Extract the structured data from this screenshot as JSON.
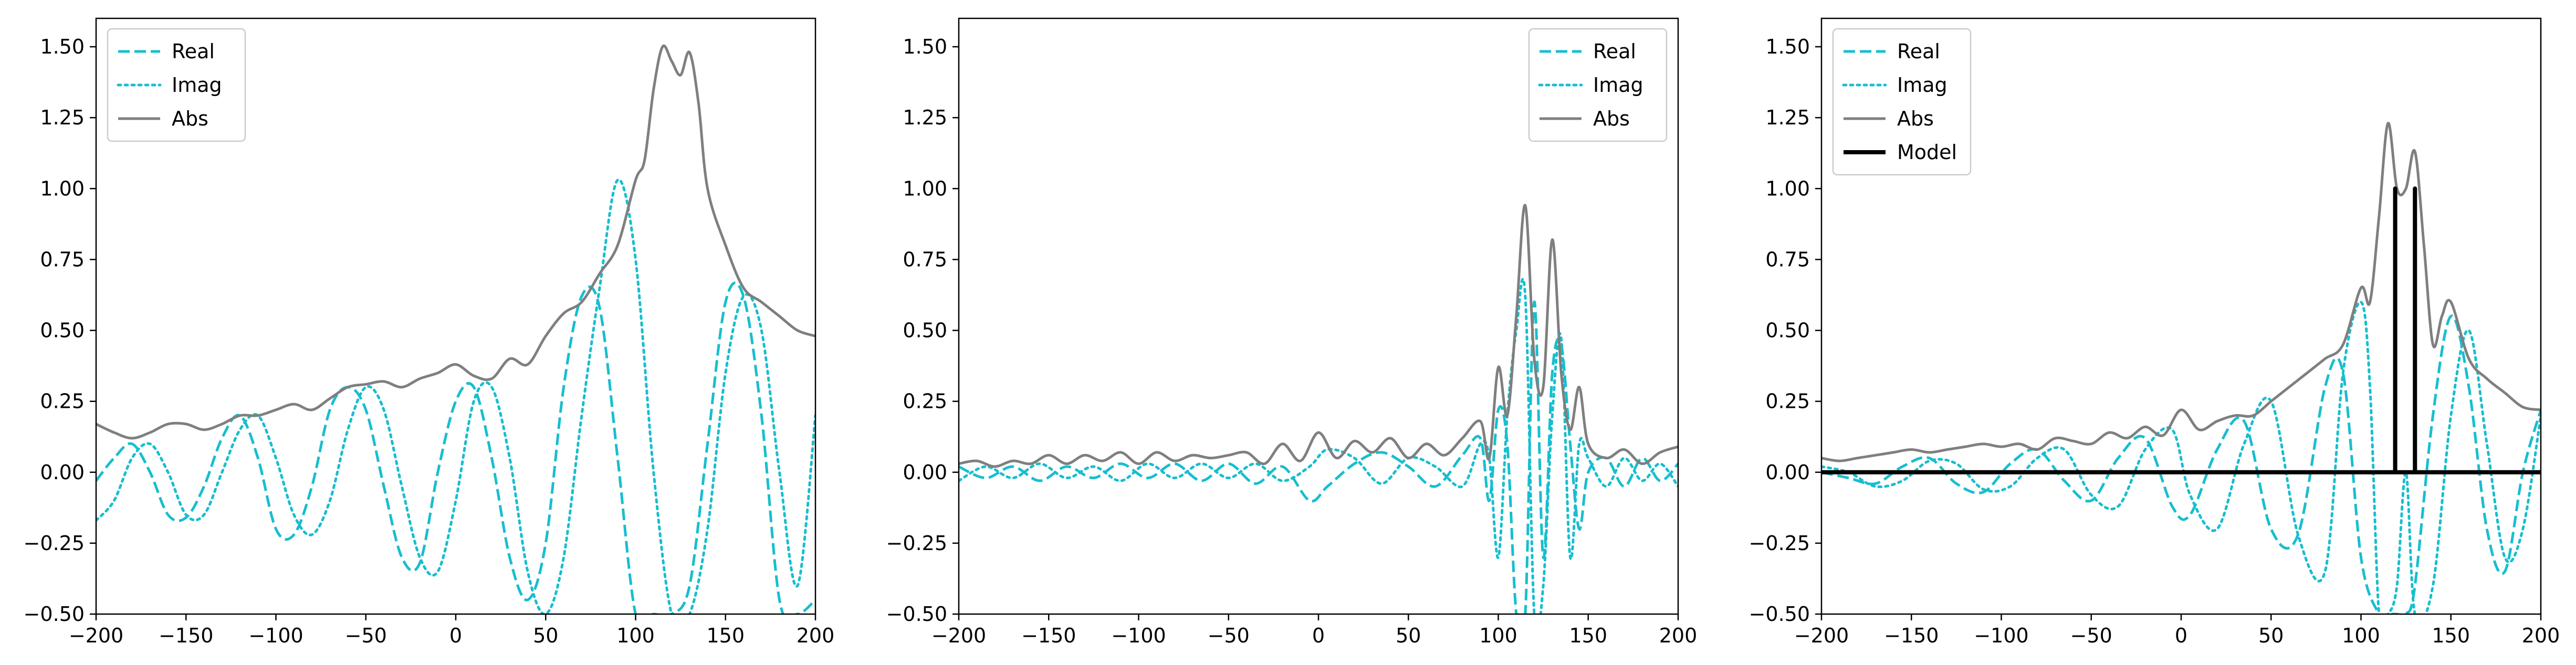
{
  "colors": {
    "real": "#17becf",
    "imag": "#17becf",
    "abs": "#7f7f7f",
    "model": "#000000",
    "axes": "#000000",
    "background": "#ffffff"
  },
  "chart_data": [
    {
      "type": "line",
      "panel": 1,
      "xlim": [
        -200,
        200
      ],
      "ylim": [
        -0.5,
        1.6
      ],
      "xticks": [
        -200,
        -150,
        -100,
        -50,
        0,
        50,
        100,
        150,
        200
      ],
      "yticks": [
        -0.5,
        -0.25,
        0.0,
        0.25,
        0.5,
        0.75,
        1.0,
        1.25,
        1.5
      ],
      "xtick_labels": [
        "−200",
        "−150",
        "−100",
        "−50",
        "0",
        "50",
        "100",
        "150",
        "200"
      ],
      "ytick_labels": [
        "−0.50",
        "−0.25",
        "0.00",
        "0.25",
        "0.50",
        "0.75",
        "1.00",
        "1.25",
        "1.50"
      ],
      "grid": false,
      "legend_position": "top-left",
      "series": [
        {
          "name": "Real",
          "style": "dashed",
          "x": [
            -200,
            -190,
            -180,
            -170,
            -160,
            -150,
            -140,
            -130,
            -120,
            -110,
            -100,
            -90,
            -80,
            -70,
            -60,
            -50,
            -40,
            -30,
            -20,
            -10,
            0,
            10,
            20,
            30,
            40,
            50,
            60,
            70,
            80,
            90,
            100,
            110,
            120,
            130,
            140,
            150,
            160,
            170,
            180,
            190,
            200
          ],
          "y": [
            -0.03,
            0.05,
            0.1,
            0.0,
            -0.15,
            -0.16,
            -0.05,
            0.12,
            0.2,
            0.05,
            -0.2,
            -0.22,
            -0.05,
            0.22,
            0.3,
            0.22,
            -0.05,
            -0.3,
            -0.32,
            0.0,
            0.25,
            0.3,
            0.05,
            -0.3,
            -0.45,
            -0.25,
            0.3,
            0.62,
            0.58,
            0.05,
            -0.5,
            -0.5,
            -0.5,
            -0.4,
            0.1,
            0.6,
            0.62,
            0.2,
            -0.45,
            -0.5,
            -0.45
          ]
        },
        {
          "name": "Imag",
          "style": "dotted",
          "x": [
            -200,
            -190,
            -180,
            -170,
            -160,
            -150,
            -140,
            -130,
            -120,
            -110,
            -100,
            -90,
            -80,
            -70,
            -60,
            -50,
            -40,
            -30,
            -20,
            -10,
            0,
            10,
            20,
            30,
            40,
            50,
            60,
            70,
            80,
            90,
            100,
            110,
            120,
            130,
            140,
            150,
            160,
            170,
            180,
            190,
            200
          ],
          "y": [
            -0.17,
            -0.1,
            0.05,
            0.1,
            0.0,
            -0.15,
            -0.15,
            0.0,
            0.15,
            0.2,
            0.05,
            -0.15,
            -0.22,
            -0.1,
            0.15,
            0.3,
            0.22,
            -0.05,
            -0.3,
            -0.35,
            -0.1,
            0.25,
            0.3,
            0.05,
            -0.35,
            -0.5,
            -0.3,
            0.2,
            0.65,
            1.03,
            0.75,
            0.0,
            -0.5,
            -0.5,
            -0.2,
            0.35,
            0.62,
            0.5,
            0.0,
            -0.4,
            0.2
          ]
        },
        {
          "name": "Abs",
          "style": "solid",
          "x": [
            -200,
            -190,
            -180,
            -170,
            -160,
            -150,
            -140,
            -130,
            -120,
            -110,
            -100,
            -90,
            -80,
            -70,
            -60,
            -50,
            -40,
            -30,
            -20,
            -10,
            0,
            10,
            20,
            30,
            40,
            50,
            60,
            70,
            80,
            90,
            100,
            105,
            110,
            115,
            120,
            125,
            130,
            135,
            140,
            150,
            160,
            170,
            180,
            190,
            200
          ],
          "y": [
            0.17,
            0.14,
            0.12,
            0.14,
            0.17,
            0.17,
            0.15,
            0.17,
            0.2,
            0.2,
            0.22,
            0.24,
            0.22,
            0.26,
            0.3,
            0.31,
            0.32,
            0.3,
            0.33,
            0.35,
            0.38,
            0.34,
            0.33,
            0.4,
            0.38,
            0.48,
            0.56,
            0.6,
            0.7,
            0.8,
            1.03,
            1.1,
            1.35,
            1.5,
            1.45,
            1.4,
            1.48,
            1.3,
            1.0,
            0.8,
            0.65,
            0.6,
            0.55,
            0.5,
            0.48
          ]
        }
      ]
    },
    {
      "type": "line",
      "panel": 2,
      "xlim": [
        -200,
        200
      ],
      "ylim": [
        -0.5,
        1.6
      ],
      "xticks": [
        -200,
        -150,
        -100,
        -50,
        0,
        50,
        100,
        150,
        200
      ],
      "yticks": [
        -0.5,
        -0.25,
        0.0,
        0.25,
        0.5,
        0.75,
        1.0,
        1.25,
        1.5
      ],
      "xtick_labels": [
        "−200",
        "−150",
        "−100",
        "−50",
        "0",
        "50",
        "100",
        "150",
        "200"
      ],
      "ytick_labels": [
        "−0.50",
        "−0.25",
        "0.00",
        "0.25",
        "0.50",
        "0.75",
        "1.00",
        "1.25",
        "1.50"
      ],
      "grid": false,
      "legend_position": "top-right",
      "series": [
        {
          "name": "Real",
          "style": "dashed",
          "x": [
            -200,
            -185,
            -170,
            -155,
            -140,
            -125,
            -110,
            -95,
            -80,
            -65,
            -50,
            -35,
            -20,
            -5,
            5,
            20,
            35,
            50,
            65,
            80,
            90,
            95,
            100,
            105,
            110,
            115,
            120,
            125,
            130,
            135,
            140,
            145,
            150,
            160,
            170,
            180,
            190,
            200
          ],
          "y": [
            0.02,
            -0.02,
            0.02,
            -0.03,
            0.02,
            -0.02,
            0.03,
            -0.02,
            0.03,
            -0.03,
            0.03,
            -0.04,
            0.02,
            -0.1,
            -0.05,
            0.03,
            0.07,
            0.02,
            -0.05,
            0.06,
            0.12,
            -0.1,
            0.22,
            0.1,
            -0.5,
            -0.5,
            0.6,
            -0.3,
            0.35,
            0.45,
            0.1,
            -0.2,
            0.0,
            0.05,
            -0.05,
            0.05,
            -0.03,
            0.03
          ]
        },
        {
          "name": "Imag",
          "style": "dotted",
          "x": [
            -200,
            -185,
            -170,
            -155,
            -140,
            -125,
            -110,
            -95,
            -80,
            -65,
            -50,
            -35,
            -20,
            -5,
            5,
            20,
            35,
            50,
            65,
            80,
            90,
            95,
            100,
            105,
            110,
            115,
            120,
            125,
            130,
            135,
            140,
            145,
            150,
            160,
            170,
            180,
            190,
            200
          ],
          "y": [
            -0.03,
            0.02,
            -0.02,
            0.03,
            -0.02,
            0.02,
            -0.03,
            0.03,
            -0.02,
            0.03,
            -0.02,
            0.03,
            -0.03,
            0.02,
            0.08,
            0.05,
            -0.04,
            0.05,
            0.02,
            -0.05,
            0.1,
            0.05,
            -0.3,
            0.2,
            0.5,
            0.62,
            -0.5,
            -0.4,
            0.2,
            0.47,
            -0.3,
            0.1,
            0.05,
            -0.05,
            0.05,
            -0.03,
            0.03,
            -0.05
          ]
        },
        {
          "name": "Abs",
          "style": "solid",
          "x": [
            -200,
            -190,
            -180,
            -170,
            -160,
            -150,
            -140,
            -130,
            -120,
            -110,
            -100,
            -90,
            -80,
            -70,
            -60,
            -50,
            -40,
            -30,
            -20,
            -10,
            0,
            10,
            20,
            30,
            40,
            50,
            60,
            70,
            80,
            90,
            95,
            100,
            105,
            110,
            115,
            120,
            125,
            130,
            135,
            140,
            145,
            150,
            160,
            170,
            180,
            190,
            200
          ],
          "y": [
            0.03,
            0.04,
            0.02,
            0.04,
            0.03,
            0.06,
            0.03,
            0.06,
            0.04,
            0.07,
            0.03,
            0.07,
            0.04,
            0.06,
            0.05,
            0.06,
            0.07,
            0.03,
            0.1,
            0.04,
            0.14,
            0.05,
            0.11,
            0.07,
            0.12,
            0.05,
            0.1,
            0.06,
            0.12,
            0.18,
            0.05,
            0.37,
            0.2,
            0.55,
            0.94,
            0.4,
            0.3,
            0.82,
            0.35,
            0.15,
            0.3,
            0.1,
            0.05,
            0.08,
            0.03,
            0.07,
            0.09
          ]
        }
      ]
    },
    {
      "type": "line",
      "panel": 3,
      "xlim": [
        -200,
        200
      ],
      "ylim": [
        -0.5,
        1.6
      ],
      "xticks": [
        -200,
        -150,
        -100,
        -50,
        0,
        50,
        100,
        150,
        200
      ],
      "yticks": [
        -0.5,
        -0.25,
        0.0,
        0.25,
        0.5,
        0.75,
        1.0,
        1.25,
        1.5
      ],
      "xtick_labels": [
        "−200",
        "−150",
        "−100",
        "−50",
        "0",
        "50",
        "100",
        "150",
        "200"
      ],
      "ytick_labels": [
        "−0.50",
        "−0.25",
        "0.00",
        "0.25",
        "0.50",
        "0.75",
        "1.00",
        "1.25",
        "1.50"
      ],
      "grid": false,
      "legend_position": "top-left",
      "series": [
        {
          "name": "Real",
          "style": "dashed",
          "x": [
            -200,
            -185,
            -170,
            -155,
            -140,
            -125,
            -110,
            -95,
            -80,
            -65,
            -50,
            -35,
            -20,
            -5,
            5,
            20,
            35,
            50,
            65,
            80,
            90,
            100,
            110,
            115,
            120,
            125,
            130,
            140,
            150,
            160,
            170,
            180,
            190,
            200
          ],
          "y": [
            0.0,
            -0.02,
            -0.04,
            0.02,
            0.05,
            -0.04,
            -0.07,
            0.03,
            0.08,
            -0.03,
            -0.1,
            0.05,
            0.12,
            -0.12,
            -0.15,
            0.08,
            0.18,
            -0.2,
            -0.22,
            0.3,
            0.35,
            -0.3,
            -0.5,
            -0.5,
            -0.5,
            -0.5,
            -0.4,
            0.2,
            0.55,
            0.3,
            -0.2,
            -0.35,
            0.0,
            0.22
          ]
        },
        {
          "name": "Imag",
          "style": "dotted",
          "x": [
            -200,
            -185,
            -170,
            -155,
            -140,
            -125,
            -110,
            -95,
            -80,
            -65,
            -50,
            -35,
            -20,
            -5,
            5,
            20,
            35,
            50,
            65,
            80,
            90,
            100,
            105,
            110,
            115,
            120,
            125,
            130,
            140,
            150,
            160,
            170,
            180,
            190,
            200
          ],
          "y": [
            0.02,
            0.0,
            -0.05,
            -0.03,
            0.04,
            0.03,
            -0.06,
            -0.05,
            0.05,
            0.08,
            -0.08,
            -0.12,
            0.08,
            0.15,
            -0.08,
            -0.2,
            0.1,
            0.25,
            -0.22,
            -0.35,
            0.35,
            0.6,
            0.3,
            -0.5,
            -0.5,
            -0.4,
            0.0,
            -0.5,
            -0.4,
            0.2,
            0.5,
            0.1,
            -0.3,
            -0.2,
            0.2
          ]
        },
        {
          "name": "Abs",
          "style": "solid",
          "x": [
            -200,
            -190,
            -180,
            -170,
            -160,
            -150,
            -140,
            -130,
            -120,
            -110,
            -100,
            -90,
            -80,
            -70,
            -60,
            -50,
            -40,
            -30,
            -20,
            -10,
            0,
            10,
            20,
            30,
            40,
            50,
            60,
            70,
            80,
            90,
            100,
            105,
            110,
            115,
            120,
            125,
            130,
            135,
            140,
            145,
            150,
            160,
            170,
            180,
            190,
            200
          ],
          "y": [
            0.05,
            0.04,
            0.05,
            0.06,
            0.07,
            0.08,
            0.07,
            0.08,
            0.09,
            0.1,
            0.09,
            0.1,
            0.08,
            0.12,
            0.11,
            0.1,
            0.14,
            0.12,
            0.16,
            0.13,
            0.22,
            0.15,
            0.18,
            0.2,
            0.2,
            0.25,
            0.3,
            0.35,
            0.4,
            0.45,
            0.65,
            0.6,
            0.9,
            1.23,
            1.0,
            1.0,
            1.13,
            0.8,
            0.45,
            0.55,
            0.6,
            0.4,
            0.33,
            0.28,
            0.23,
            0.22
          ]
        },
        {
          "name": "Model",
          "style": "solid-thick",
          "x": [
            -200,
            119,
            119,
            119,
            130,
            130,
            130,
            200
          ],
          "y": [
            0,
            0,
            1,
            0,
            0,
            1,
            0,
            0
          ]
        }
      ]
    }
  ]
}
